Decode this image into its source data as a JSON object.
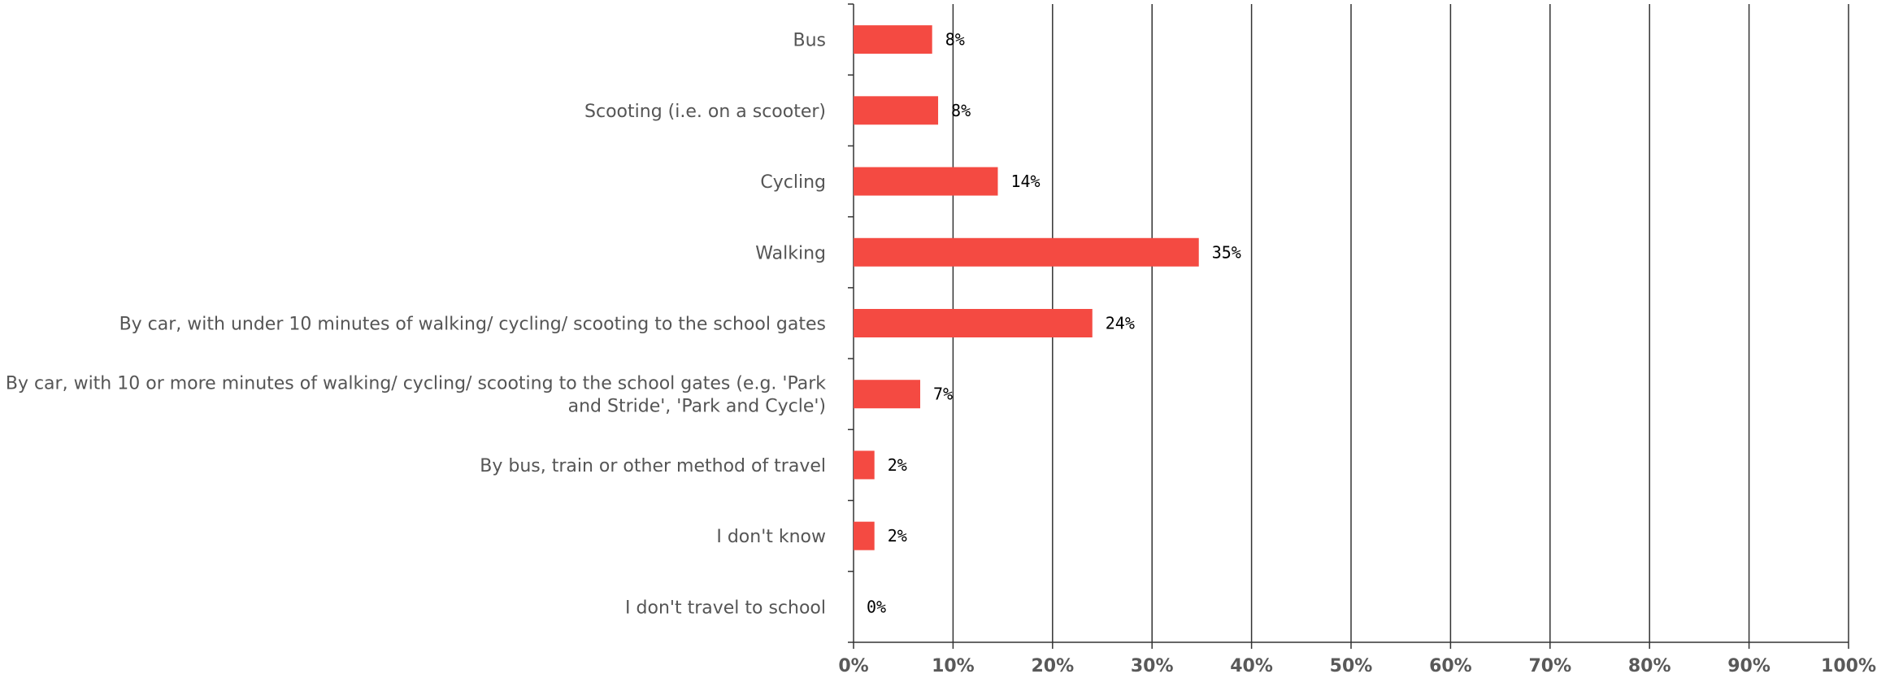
{
  "chart_data": {
    "type": "bar",
    "orientation": "horizontal",
    "categories": [
      "Bus",
      "Scooting (i.e. on a scooter)",
      "Cycling",
      "Walking",
      "By car, with under 10 minutes of walking/ cycling/ scooting to the school gates",
      "By car, with 10 or more minutes of walking/ cycling/ scooting to the school gates (e.g. 'Park and Stride', 'Park and Cycle')",
      "By bus, train or other method of travel",
      "I don't know",
      "I don't travel to school"
    ],
    "category_display_lines": [
      [
        "Bus"
      ],
      [
        "Scooting (i.e. on a scooter)"
      ],
      [
        "Cycling"
      ],
      [
        "Walking"
      ],
      [
        "By car, with under 10 minutes of walking/ cycling/ scooting to the school gates"
      ],
      [
        "By car, with 10 or more minutes of walking/ cycling/ scooting to the school gates (e.g. 'Park",
        "and Stride', 'Park and Cycle')"
      ],
      [
        "By bus, train or other method of travel"
      ],
      [
        "I don't know"
      ],
      [
        "I don't travel to school"
      ]
    ],
    "values": [
      7.9,
      8.5,
      14.5,
      34.7,
      24.0,
      6.7,
      2.1,
      2.1,
      0
    ],
    "value_labels": [
      "8%",
      "8%",
      "14%",
      "35%",
      "24%",
      "7%",
      "2%",
      "2%",
      "0%"
    ],
    "xlim": [
      0,
      100
    ],
    "x_ticks": [
      "0%",
      "10%",
      "20%",
      "30%",
      "40%",
      "50%",
      "60%",
      "70%",
      "80%",
      "90%",
      "100%"
    ],
    "title": "",
    "xlabel": "",
    "ylabel": "",
    "grid": "vertical",
    "legend": "none",
    "bar_color": "#f44a42",
    "grid_color": "#333333"
  }
}
